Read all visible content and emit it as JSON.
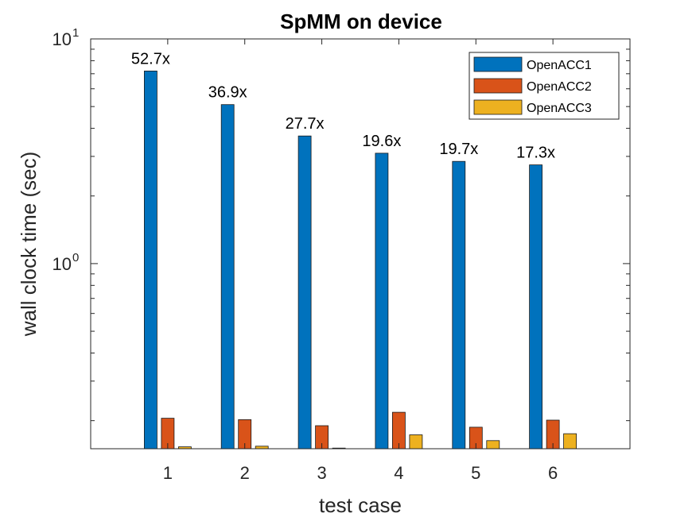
{
  "chart_data": {
    "type": "bar",
    "title": "SpMM on device",
    "xlabel": "test case",
    "ylabel": "wall clock time (sec)",
    "yscale": "log",
    "ylim": [
      0.15,
      10
    ],
    "xlim": [
      0,
      7
    ],
    "categories": [
      "1",
      "2",
      "3",
      "4",
      "5",
      "6"
    ],
    "y_ticks": [
      {
        "value": 1,
        "base": "10",
        "exponent": "0"
      },
      {
        "value": 10,
        "base": "10",
        "exponent": "1"
      }
    ],
    "series": [
      {
        "name": "OpenACC1",
        "color": "#0072BD",
        "values": [
          7.2,
          5.1,
          3.7,
          3.1,
          2.85,
          2.75
        ]
      },
      {
        "name": "OpenACC2",
        "color": "#D95319",
        "values": [
          0.205,
          0.202,
          0.19,
          0.218,
          0.187,
          0.201
        ]
      },
      {
        "name": "OpenACC3",
        "color": "#EDB120",
        "values": [
          0.153,
          0.154,
          0.15,
          0.173,
          0.163,
          0.175
        ]
      }
    ],
    "annotations": [
      "52.7x",
      "36.9x",
      "27.7x",
      "19.6x",
      "19.7x",
      "17.3x"
    ],
    "legend_location": "top-right",
    "grid": false
  }
}
